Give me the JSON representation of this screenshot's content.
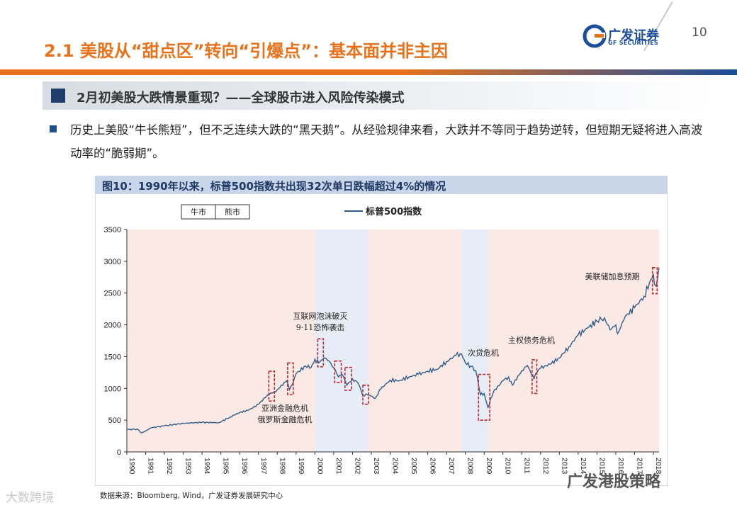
{
  "slide": {
    "title": "2.1 美股从“甜点区”转向“引爆点”：基本面并非主因",
    "page_number": "10",
    "logo_cn": "广发证券",
    "logo_en": "GF SECURITIES"
  },
  "section": {
    "title": "2月初美股大跌情景重现？——全球股市进入风险传染模式"
  },
  "bullet": {
    "text": "历史上美股“牛长熊短”，但不乏连续大跌的“黑天鹅”。从经验规律来看，大跌并不等同于趋势逆转，但短期无疑将进入高波动率的“脆弱期”。"
  },
  "figure": {
    "title": "图10：1990年以来，标普500指数共出现32次单日跌幅超过4%的情况",
    "source": "数据来源：Bloomberg, Wind，广发证券发展研究中心"
  },
  "watermarks": {
    "left": "大数跨境",
    "right": "广发港股策略"
  },
  "colors": {
    "orange": "#e8721c",
    "navy": "#1a4d9c",
    "line": "#2e5d8a",
    "bull": "#fbe9e5",
    "bear": "#e6edf6",
    "box": "#c0272d"
  },
  "chart_data": {
    "type": "line",
    "title": "",
    "xlabel": "",
    "ylabel": "",
    "x_range": [
      1990.0,
      2018.3
    ],
    "ylim": [
      0,
      3500
    ],
    "yticks": [
      0,
      500,
      1000,
      1500,
      2000,
      2500,
      3000,
      3500
    ],
    "xticks": [
      "1990",
      "1991",
      "1992",
      "1993",
      "1994",
      "1995",
      "1996",
      "1997",
      "1998",
      "1999",
      "2000",
      "2001",
      "2002",
      "2003",
      "2004",
      "2005",
      "2006",
      "2007",
      "2008",
      "2009",
      "2010",
      "2011",
      "2012",
      "2013",
      "2014",
      "2015",
      "2016",
      "2017",
      "2018"
    ],
    "legend_regimes": [
      "牛市",
      "熊市"
    ],
    "series": [
      {
        "name": "标普500指数",
        "x": [
          1990.0,
          1990.55,
          1990.8,
          1991.0,
          1991.3,
          1992.0,
          1993.0,
          1994.0,
          1994.9,
          1995.5,
          1996.0,
          1996.5,
          1997.0,
          1997.5,
          1997.85,
          1998.0,
          1998.5,
          1998.65,
          1998.85,
          1999.0,
          1999.5,
          1999.8,
          2000.0,
          2000.2,
          2000.5,
          2000.75,
          2001.0,
          2001.25,
          2001.45,
          2001.7,
          2002.0,
          2002.3,
          2002.55,
          2002.8,
          2003.0,
          2003.2,
          2003.5,
          2004.0,
          2004.5,
          2005.0,
          2005.5,
          2006.0,
          2006.5,
          2007.0,
          2007.5,
          2007.8,
          2008.0,
          2008.3,
          2008.55,
          2008.8,
          2009.0,
          2009.2,
          2009.5,
          2010.0,
          2010.3,
          2010.5,
          2011.0,
          2011.3,
          2011.65,
          2011.8,
          2012.0,
          2012.5,
          2013.0,
          2013.5,
          2014.0,
          2014.5,
          2015.0,
          2015.4,
          2015.7,
          2016.0,
          2016.1,
          2016.5,
          2017.0,
          2017.5,
          2018.0,
          2018.1,
          2018.2,
          2018.3
        ],
        "y": [
          350,
          360,
          300,
          330,
          380,
          410,
          450,
          465,
          460,
          550,
          620,
          660,
          750,
          900,
          950,
          980,
          1120,
          980,
          1100,
          1230,
          1350,
          1330,
          1460,
          1400,
          1480,
          1430,
          1320,
          1180,
          1220,
          1050,
          1150,
          1080,
          880,
          900,
          880,
          840,
          990,
          1130,
          1120,
          1180,
          1220,
          1270,
          1300,
          1420,
          1520,
          1540,
          1400,
          1350,
          1280,
          900,
          920,
          700,
          950,
          1120,
          1180,
          1050,
          1280,
          1360,
          1150,
          1250,
          1320,
          1380,
          1480,
          1650,
          1840,
          1950,
          2060,
          2110,
          1920,
          2000,
          1860,
          2130,
          2270,
          2450,
          2800,
          2620,
          2700,
          2900
        ]
      }
    ],
    "shaded": [
      {
        "regime": "熊市",
        "from": 2000.0,
        "to": 2002.8
      },
      {
        "regime": "熊市",
        "from": 2007.8,
        "to": 2009.2
      }
    ],
    "boxes": [
      {
        "from": 1997.55,
        "to": 1997.85,
        "lo": 800,
        "hi": 1270
      },
      {
        "from": 1998.55,
        "to": 1998.85,
        "lo": 900,
        "hi": 1400
      },
      {
        "from": 2000.15,
        "to": 2000.45,
        "lo": 1340,
        "hi": 1780
      },
      {
        "from": 2001.05,
        "to": 2001.4,
        "lo": 1090,
        "hi": 1430
      },
      {
        "from": 2001.6,
        "to": 2001.95,
        "lo": 970,
        "hi": 1330
      },
      {
        "from": 2002.55,
        "to": 2002.85,
        "lo": 750,
        "hi": 1050
      },
      {
        "from": 2008.7,
        "to": 2009.3,
        "lo": 500,
        "hi": 1220
      },
      {
        "from": 2011.55,
        "to": 2011.8,
        "lo": 920,
        "hi": 1450
      },
      {
        "from": 2017.95,
        "to": 2018.2,
        "lo": 2490,
        "hi": 2900
      }
    ],
    "annotations": [
      {
        "lines": [
          "亚洲金融危机",
          "俄罗斯金融危机"
        ]
      },
      {
        "lines": [
          "互联网泡沫破灭",
          "9·11恐怖袭击"
        ]
      },
      {
        "lines": [
          "次贷危机"
        ]
      },
      {
        "lines": [
          "主权债务危机"
        ]
      },
      {
        "lines": [
          "美联储加息预期"
        ]
      }
    ]
  }
}
